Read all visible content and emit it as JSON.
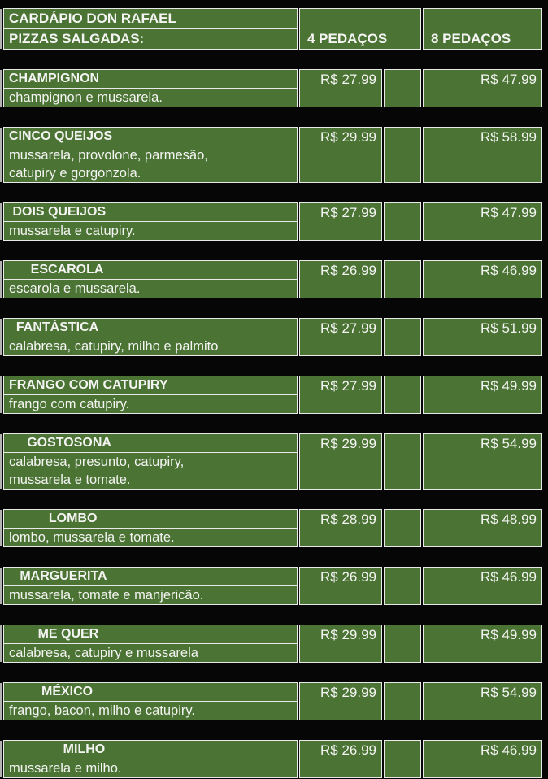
{
  "header": {
    "title": "CARDÁPIO DON RAFAEL",
    "subtitle": "PIZZAS SALGADAS:",
    "col_4_label": "4 PEDAÇOS",
    "col_8_label": "8 PEDAÇOS"
  },
  "items": [
    {
      "name": "CHAMPIGNON",
      "desc": [
        "champignon e mussarela."
      ],
      "price_4": "R$ 27.99",
      "price_8": "R$ 47.99"
    },
    {
      "name": "CINCO QUEIJOS",
      "desc": [
        "mussarela, provolone, parmesão,",
        "catupiry e gorgonzola."
      ],
      "price_4": "R$ 29.99",
      "price_8": "R$ 58.99"
    },
    {
      "name": " DOIS QUEIJOS",
      "desc": [
        "mussarela e catupiry."
      ],
      "price_4": "R$ 27.99",
      "price_8": "R$ 47.99"
    },
    {
      "name": "      ESCAROLA",
      "desc": [
        "escarola e mussarela."
      ],
      "price_4": "R$ 26.99",
      "price_8": "R$ 46.99"
    },
    {
      "name": "  FANTÁSTICA",
      "desc": [
        "calabresa, catupiry, milho e palmito"
      ],
      "price_4": "R$ 27.99",
      "price_8": "R$ 51.99"
    },
    {
      "name": "FRANGO COM CATUPIRY",
      "desc": [
        "frango com catupiry."
      ],
      "price_4": "R$ 27.99",
      "price_8": "R$ 49.99"
    },
    {
      "name": "     GOSTOSONA",
      "desc": [
        "calabresa, presunto, catupiry,",
        "mussarela e tomate."
      ],
      "price_4": "R$ 29.99",
      "price_8": "R$ 54.99"
    },
    {
      "name": "           LOMBO",
      "desc": [
        "lombo, mussarela e tomate."
      ],
      "price_4": "R$ 28.99",
      "price_8": "R$ 48.99"
    },
    {
      "name": "   MARGUERITA",
      "desc": [
        "mussarela, tomate e manjericão."
      ],
      "price_4": "R$ 26.99",
      "price_8": "R$ 46.99"
    },
    {
      "name": "        ME QUER",
      "desc": [
        "calabresa, catupiry e mussarela"
      ],
      "price_4": "R$ 29.99",
      "price_8": "R$ 49.99"
    },
    {
      "name": "         MÉXICO",
      "desc": [
        "frango, bacon, milho e catupiry."
      ],
      "price_4": "R$ 29.99",
      "price_8": "R$ 54.99"
    },
    {
      "name": "               MILHO",
      "desc": [
        "mussarela e milho."
      ],
      "price_4": "R$ 26.99",
      "price_8": "R$ 46.99"
    }
  ],
  "colors": {
    "cell_green": "#4a7334",
    "gridline": "#e9e9e9",
    "background": "#060606",
    "text": "#f4f4f2"
  }
}
